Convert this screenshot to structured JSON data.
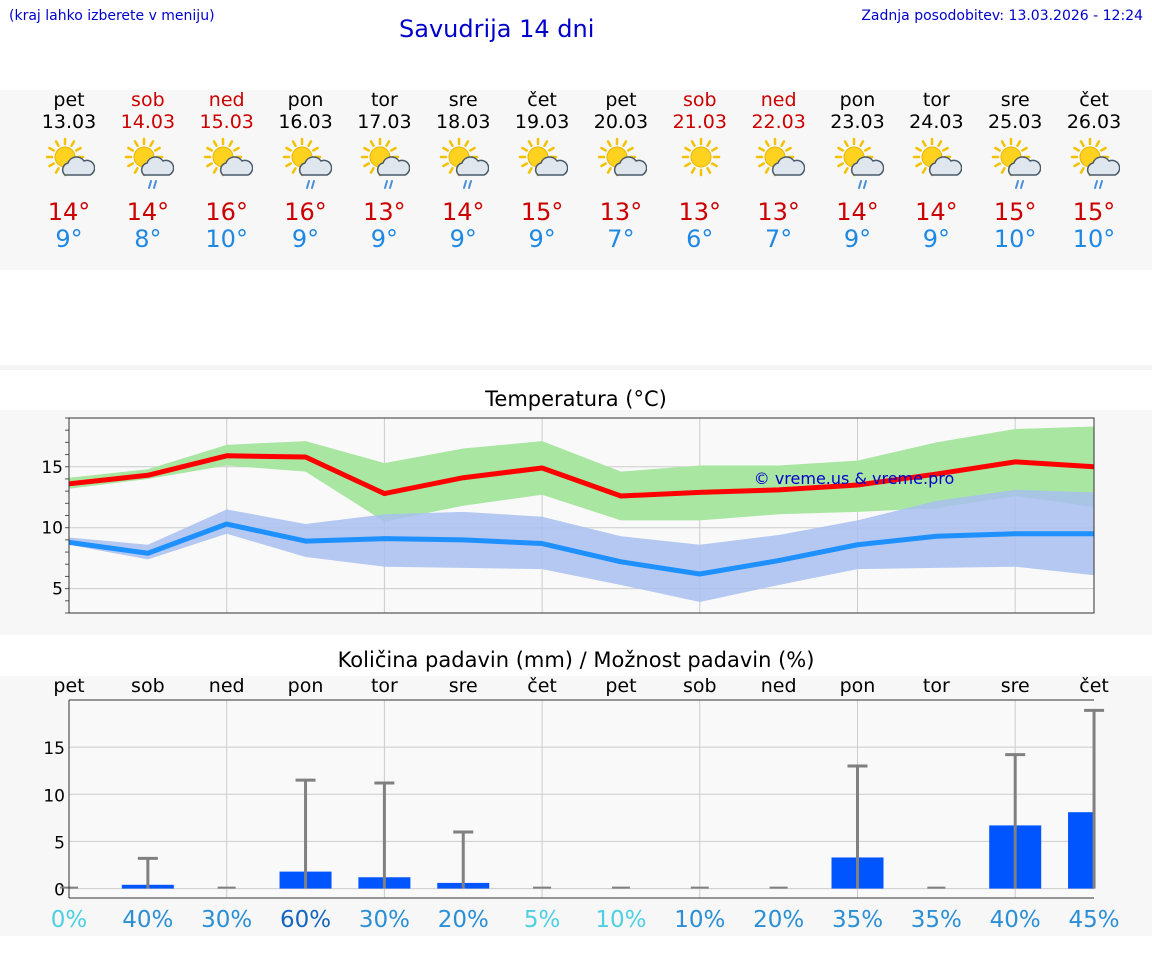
{
  "header": {
    "hint": "(kraj lahko izberete v meniju)",
    "title": "Savudrija 14 dni",
    "updated_label": "Zadnja posodobitev:",
    "updated_value": "13.03.2026 - 12:24"
  },
  "days": [
    {
      "name": "pet",
      "date": "13.03",
      "max": "14°",
      "min": "9°",
      "weekend": false,
      "icon": "sun-cloud-icon"
    },
    {
      "name": "sob",
      "date": "14.03",
      "max": "14°",
      "min": "8°",
      "weekend": true,
      "icon": "sun-cloud-rain-icon"
    },
    {
      "name": "ned",
      "date": "15.03",
      "max": "16°",
      "min": "10°",
      "weekend": true,
      "icon": "sun-cloud-icon"
    },
    {
      "name": "pon",
      "date": "16.03",
      "max": "16°",
      "min": "9°",
      "weekend": false,
      "icon": "sun-cloud-rain-icon"
    },
    {
      "name": "tor",
      "date": "17.03",
      "max": "13°",
      "min": "9°",
      "weekend": false,
      "icon": "sun-cloud-rain-icon"
    },
    {
      "name": "sre",
      "date": "18.03",
      "max": "14°",
      "min": "9°",
      "weekend": false,
      "icon": "sun-cloud-rain-icon"
    },
    {
      "name": "čet",
      "date": "19.03",
      "max": "15°",
      "min": "9°",
      "weekend": false,
      "icon": "sun-cloud-icon"
    },
    {
      "name": "pet",
      "date": "20.03",
      "max": "13°",
      "min": "7°",
      "weekend": false,
      "icon": "sun-cloud-icon"
    },
    {
      "name": "sob",
      "date": "21.03",
      "max": "13°",
      "min": "6°",
      "weekend": true,
      "icon": "sun-icon"
    },
    {
      "name": "ned",
      "date": "22.03",
      "max": "13°",
      "min": "7°",
      "weekend": true,
      "icon": "sun-cloud-icon"
    },
    {
      "name": "pon",
      "date": "23.03",
      "max": "14°",
      "min": "9°",
      "weekend": false,
      "icon": "sun-cloud-rain-icon"
    },
    {
      "name": "tor",
      "date": "24.03",
      "max": "14°",
      "min": "9°",
      "weekend": false,
      "icon": "sun-cloud-icon"
    },
    {
      "name": "sre",
      "date": "25.03",
      "max": "15°",
      "min": "10°",
      "weekend": false,
      "icon": "sun-cloud-rain-icon"
    },
    {
      "name": "čet",
      "date": "26.03",
      "max": "15°",
      "min": "10°",
      "weekend": false,
      "icon": "sun-cloud-rain-icon"
    }
  ],
  "colors": {
    "max": "#ff0000",
    "min": "#1e90ff",
    "max_band": "#a8e6a1",
    "min_band": "#a8c0f0",
    "bar": "#0055ff",
    "whisker": "#808080"
  },
  "chart_data": [
    {
      "type": "line",
      "title": "Temperatura (°C)",
      "watermark": "© vreme.us & vreme.pro",
      "x": [
        0,
        1,
        2,
        3,
        4,
        5,
        6,
        7,
        8,
        9,
        10,
        11,
        12,
        13
      ],
      "ylim": [
        3,
        19
      ],
      "yticks": [
        5,
        10,
        15
      ],
      "series": [
        {
          "name": "max",
          "values": [
            13.6,
            14.3,
            15.9,
            15.8,
            12.8,
            14.1,
            14.9,
            12.6,
            12.9,
            13.1,
            13.5,
            14.4,
            15.4,
            15.0
          ]
        },
        {
          "name": "min",
          "values": [
            8.8,
            7.9,
            10.3,
            8.9,
            9.1,
            9.0,
            8.7,
            7.2,
            6.2,
            7.3,
            8.6,
            9.3,
            9.5,
            9.5
          ]
        }
      ],
      "bands": [
        {
          "name": "max_range",
          "low": [
            13.2,
            14.0,
            15.1,
            14.6,
            10.5,
            11.8,
            12.7,
            10.6,
            10.6,
            11.1,
            11.3,
            11.6,
            12.6,
            11.7
          ],
          "high": [
            14.1,
            14.8,
            16.8,
            17.1,
            15.3,
            16.5,
            17.1,
            14.6,
            15.1,
            15.1,
            15.5,
            17.0,
            18.1,
            18.3
          ]
        },
        {
          "name": "min_range",
          "low": [
            8.6,
            7.4,
            9.5,
            7.6,
            6.8,
            6.7,
            6.6,
            5.3,
            3.9,
            5.3,
            6.6,
            6.7,
            6.8,
            6.1
          ],
          "high": [
            9.2,
            8.6,
            11.5,
            10.3,
            11.1,
            11.3,
            10.9,
            9.3,
            8.6,
            9.4,
            10.6,
            12.2,
            13.1,
            12.9
          ]
        }
      ]
    },
    {
      "type": "bar",
      "title": "Količina padavin (mm) / Možnost padavin (%)",
      "categories": [
        "pet",
        "sob",
        "ned",
        "pon",
        "tor",
        "sre",
        "čet",
        "pet",
        "sob",
        "ned",
        "pon",
        "tor",
        "sre",
        "čet"
      ],
      "ylim": [
        -1,
        20
      ],
      "yticks": [
        0,
        5,
        10,
        15
      ],
      "values": [
        0,
        0.4,
        0,
        1.8,
        1.2,
        0.6,
        0,
        0,
        0,
        0,
        3.3,
        0,
        6.7,
        8.1
      ],
      "max_values": [
        0,
        3.2,
        0,
        11.5,
        11.2,
        6.0,
        0,
        0,
        0,
        0,
        13.0,
        0,
        14.2,
        18.9
      ],
      "chance": [
        "0%",
        "40%",
        "30%",
        "60%",
        "30%",
        "20%",
        "5%",
        "10%",
        "10%",
        "20%",
        "35%",
        "35%",
        "40%",
        "45%"
      ],
      "chance_colors": [
        "#4dd0e1",
        "#2b8fd6",
        "#2b8fd6",
        "#1565c0",
        "#2b8fd6",
        "#2b8fd6",
        "#4dd0e1",
        "#4dd0e1",
        "#2b8fd6",
        "#2b8fd6",
        "#2b8fd6",
        "#2b8fd6",
        "#2b8fd6",
        "#2b8fd6"
      ]
    }
  ]
}
